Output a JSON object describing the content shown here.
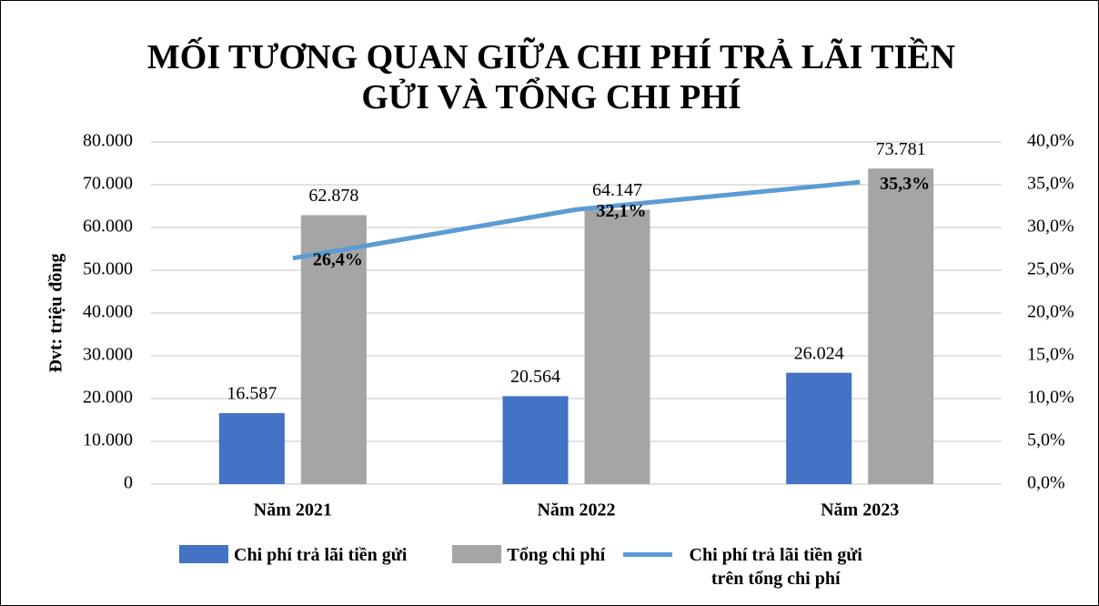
{
  "chart_data": {
    "type": "bar",
    "title": "MỐI TƯƠNG QUAN GIỮA CHI PHÍ TRẢ LÃI TIỀN GỬI VÀ TỔNG CHI PHÍ",
    "ylabel": "Đvt: triệu đồng",
    "categories": [
      "Năm 2021",
      "Năm 2022",
      "Năm 2023"
    ],
    "series": [
      {
        "name": "Chi phí trả lãi tiền gửi",
        "type": "bar",
        "color": "#4472c4",
        "values": [
          16587,
          20564,
          26024
        ],
        "value_labels": [
          "16.587",
          "20.564",
          "26.024"
        ]
      },
      {
        "name": "Tổng chi phí",
        "type": "bar",
        "color": "#a5a5a5",
        "values": [
          62878,
          64147,
          73781
        ],
        "value_labels": [
          "62.878",
          "64.147",
          "73.781"
        ]
      },
      {
        "name": "Chi phí trả lãi tiền gửi trên tổng chi phí",
        "type": "line",
        "axis": "y2",
        "color": "#5b9bd5",
        "values": [
          26.4,
          32.1,
          35.3
        ],
        "value_labels": [
          "26,4%",
          "32,1%",
          "35,3%"
        ]
      }
    ],
    "ylim": [
      0,
      80000
    ],
    "yticks": [
      0,
      {
        "value": 10000,
        "label": "10.000"
      },
      {
        "value": 20000,
        "label": "20.000"
      },
      {
        "value": 30000,
        "label": "30.000"
      },
      {
        "value": 40000,
        "label": "40.000"
      },
      {
        "value": 50000,
        "label": "50.000"
      },
      {
        "value": 60000,
        "label": "60.000"
      },
      {
        "value": 70000,
        "label": "70.000"
      },
      {
        "value": 80000,
        "label": "80.000"
      }
    ],
    "y2lim": [
      0,
      40
    ],
    "y2ticks": [
      {
        "value": 0,
        "label": "0,0%"
      },
      {
        "value": 5,
        "label": "5,0%"
      },
      {
        "value": 10,
        "label": "10,0%"
      },
      {
        "value": 15,
        "label": "15,0%"
      },
      {
        "value": 20,
        "label": "20,0%"
      },
      {
        "value": 25,
        "label": "25,0%"
      },
      {
        "value": 30,
        "label": "30,0%"
      },
      {
        "value": 35,
        "label": "35,0%"
      },
      {
        "value": 40,
        "label": "40,0%"
      }
    ],
    "grid": true,
    "legend": "bottom"
  }
}
